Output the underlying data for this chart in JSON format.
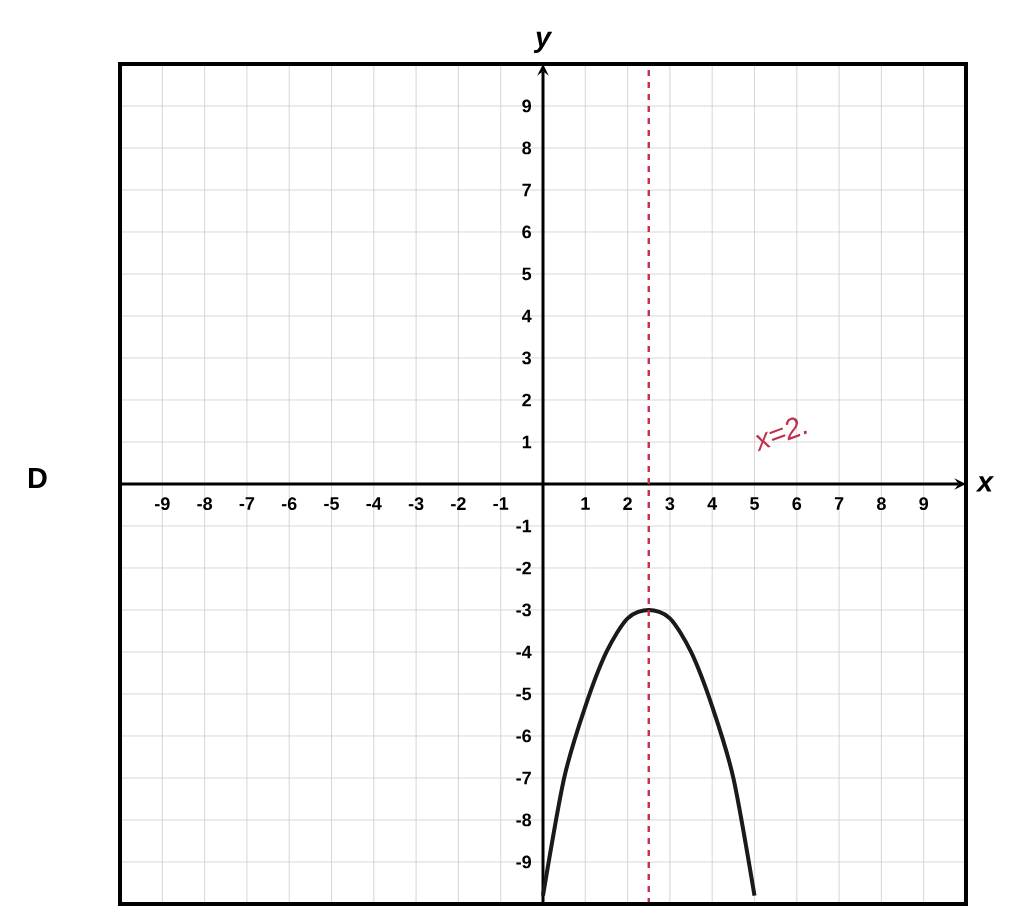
{
  "chart_data": {
    "type": "line",
    "xlabel": "x",
    "ylabel": "y",
    "annotations": [
      "D"
    ],
    "series": [
      {
        "color": "#1a1a1a",
        "x": [
          0,
          0.5,
          1,
          1.5,
          2,
          2.5,
          3,
          3.5,
          4,
          4.5,
          5
        ],
        "values": [
          -9.8,
          -7,
          -5.3,
          -4,
          -3.2,
          -3,
          -3.2,
          -4,
          -5.3,
          -7,
          -9.8
        ]
      }
    ],
    "xlim": [
      -10,
      10
    ],
    "ylim": [
      -10,
      10
    ],
    "xticks": [
      -9,
      -8,
      -7,
      -6,
      -5,
      -4,
      -3,
      -2,
      -1,
      1,
      2,
      3,
      4,
      5,
      6,
      7,
      8,
      9
    ],
    "yticks": [
      -9,
      -8,
      -7,
      -6,
      -5,
      -4,
      -3,
      -2,
      -1,
      1,
      2,
      3,
      4,
      5,
      6,
      7,
      8,
      9
    ],
    "ref_lines": [
      {
        "axis": "x",
        "value": 2.5,
        "label": "x=2.",
        "color": "#c0304a",
        "line_style": "dashed"
      }
    ],
    "grid": true,
    "marker": "none",
    "line_style": "solid"
  }
}
